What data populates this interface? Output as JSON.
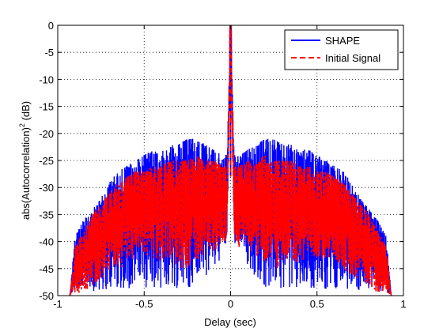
{
  "chart_data": {
    "type": "line",
    "title": "",
    "xlabel": "Delay (sec)",
    "ylabel_main": "abs(Autocorrelation)",
    "ylabel_sup": "2",
    "ylabel_unit": " (dB)",
    "xlim": [
      -1,
      1
    ],
    "ylim": [
      -50,
      0
    ],
    "x_ticks": [
      -1,
      -0.5,
      0,
      0.5,
      1
    ],
    "x_tick_labels": [
      "-1",
      "-0.5",
      "0",
      "0.5",
      "1"
    ],
    "y_ticks": [
      0,
      -5,
      -10,
      -15,
      -20,
      -25,
      -30,
      -35,
      -40,
      -45,
      -50
    ],
    "y_tick_labels": [
      "0",
      "-5",
      "-10",
      "-15",
      "-20",
      "-25",
      "-30",
      "-35",
      "-40",
      "-45",
      "-50"
    ],
    "grid": true,
    "legend_position": "top-right",
    "series": [
      {
        "name": "SHAPE",
        "color": "#0000ff",
        "style": "solid",
        "x": [
          -0.93,
          -0.9,
          -0.85,
          -0.8,
          -0.75,
          -0.7,
          -0.65,
          -0.6,
          -0.55,
          -0.5,
          -0.45,
          -0.4,
          -0.35,
          -0.3,
          -0.25,
          -0.2,
          -0.15,
          -0.1,
          -0.05,
          -0.02,
          0,
          0.02,
          0.05,
          0.1,
          0.15,
          0.2,
          0.25,
          0.3,
          0.35,
          0.4,
          0.45,
          0.5,
          0.55,
          0.6,
          0.65,
          0.7,
          0.75,
          0.8,
          0.85,
          0.9,
          0.93
        ],
        "upper": [
          -50,
          -39,
          -36,
          -34,
          -32,
          -29,
          -27,
          -26,
          -25,
          -24,
          -23,
          -23,
          -22,
          -22,
          -21,
          -21,
          -22,
          -23,
          -24,
          -24,
          0,
          -24,
          -24,
          -23,
          -22,
          -21,
          -21,
          -22,
          -22,
          -23,
          -23,
          -24,
          -25,
          -26,
          -27,
          -29,
          -32,
          -34,
          -36,
          -39,
          -50
        ],
        "lower": [
          -50,
          -50,
          -50,
          -50,
          -50,
          -50,
          -50,
          -50,
          -50,
          -50,
          -50,
          -50,
          -50,
          -50,
          -50,
          -50,
          -48,
          -46,
          -44,
          -43,
          0,
          -43,
          -44,
          -46,
          -48,
          -50,
          -50,
          -50,
          -50,
          -50,
          -50,
          -50,
          -50,
          -50,
          -50,
          -50,
          -50,
          -50,
          -50,
          -50,
          -50
        ]
      },
      {
        "name": "Initial Signal",
        "color": "#ff0000",
        "style": "dashed",
        "x": [
          -0.93,
          -0.9,
          -0.85,
          -0.8,
          -0.75,
          -0.7,
          -0.65,
          -0.6,
          -0.55,
          -0.5,
          -0.45,
          -0.4,
          -0.35,
          -0.3,
          -0.25,
          -0.2,
          -0.15,
          -0.1,
          -0.05,
          -0.02,
          0,
          0.02,
          0.05,
          0.1,
          0.15,
          0.2,
          0.25,
          0.3,
          0.35,
          0.4,
          0.45,
          0.5,
          0.55,
          0.6,
          0.65,
          0.7,
          0.75,
          0.8,
          0.85,
          0.9,
          0.93
        ],
        "upper": [
          -50,
          -41,
          -38,
          -35,
          -33,
          -31,
          -29,
          -28,
          -27,
          -27,
          -26,
          -26,
          -25,
          -25,
          -25,
          -24,
          -25,
          -25,
          -26,
          -26,
          0,
          -26,
          -26,
          -25,
          -25,
          -24,
          -25,
          -25,
          -25,
          -26,
          -26,
          -27,
          -27,
          -28,
          -29,
          -31,
          -33,
          -35,
          -38,
          -41,
          -50
        ],
        "lower": [
          -50,
          -50,
          -50,
          -49,
          -48,
          -47,
          -46,
          -45,
          -45,
          -44,
          -44,
          -45,
          -45,
          -46,
          -46,
          -45,
          -44,
          -43,
          -42,
          -41,
          0,
          -41,
          -42,
          -43,
          -44,
          -45,
          -46,
          -46,
          -45,
          -45,
          -44,
          -44,
          -45,
          -45,
          -46,
          -47,
          -48,
          -49,
          -50,
          -50,
          -50
        ]
      }
    ]
  }
}
